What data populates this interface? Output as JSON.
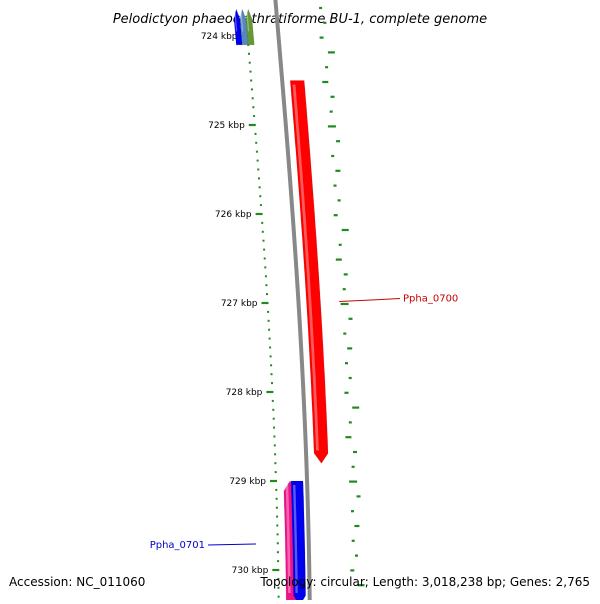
{
  "title": "Pelodictyon phaeoclathratiforme BU-1, complete genome",
  "footer": {
    "accession": "Accession: NC_011060",
    "topology": "Topology: circular; Length: 3,018,238 bp; Genes: 2,765"
  },
  "ruler": {
    "unit": "kbp",
    "ticks": [
      {
        "label": "724 kbp",
        "kbp": 724
      },
      {
        "label": "725 kbp",
        "kbp": 725
      },
      {
        "label": "726 kbp",
        "kbp": 726
      },
      {
        "label": "727 kbp",
        "kbp": 727
      },
      {
        "label": "728 kbp",
        "kbp": 728
      },
      {
        "label": "729 kbp",
        "kbp": 729
      },
      {
        "label": "730 kbp",
        "kbp": 730
      }
    ]
  },
  "features": [
    {
      "label": "Ppha_0700",
      "strand": "forward",
      "color": "#ff0000",
      "start_kbp": 724.5,
      "end_kbp": 728.8,
      "labeled": true
    },
    {
      "label": "Ppha_0701",
      "strand": "reverse",
      "color": "#ee1188",
      "start_kbp": 729.0,
      "end_kbp": 730.4,
      "labeled": true
    },
    {
      "label": "",
      "strand": "forward",
      "color": "#0000ee",
      "start_kbp": 729.0,
      "end_kbp": 730.4,
      "labeled": false
    },
    {
      "label": "",
      "strand": "reverse",
      "color": "#0000ee",
      "start_kbp": 723.7,
      "end_kbp": 724.1,
      "labeled": false
    },
    {
      "label": "",
      "strand": "reverse",
      "color": "#5588bb",
      "start_kbp": 723.7,
      "end_kbp": 724.1,
      "labeled": false
    },
    {
      "label": "",
      "strand": "reverse",
      "color": "#669933",
      "start_kbp": 723.7,
      "end_kbp": 724.1,
      "labeled": false
    }
  ],
  "colors": {
    "backbone": "#888888",
    "gc_content": "#1f8a1f",
    "forward_label": "#cc0000",
    "reverse_label": "#0000cc",
    "text": "#000000"
  }
}
